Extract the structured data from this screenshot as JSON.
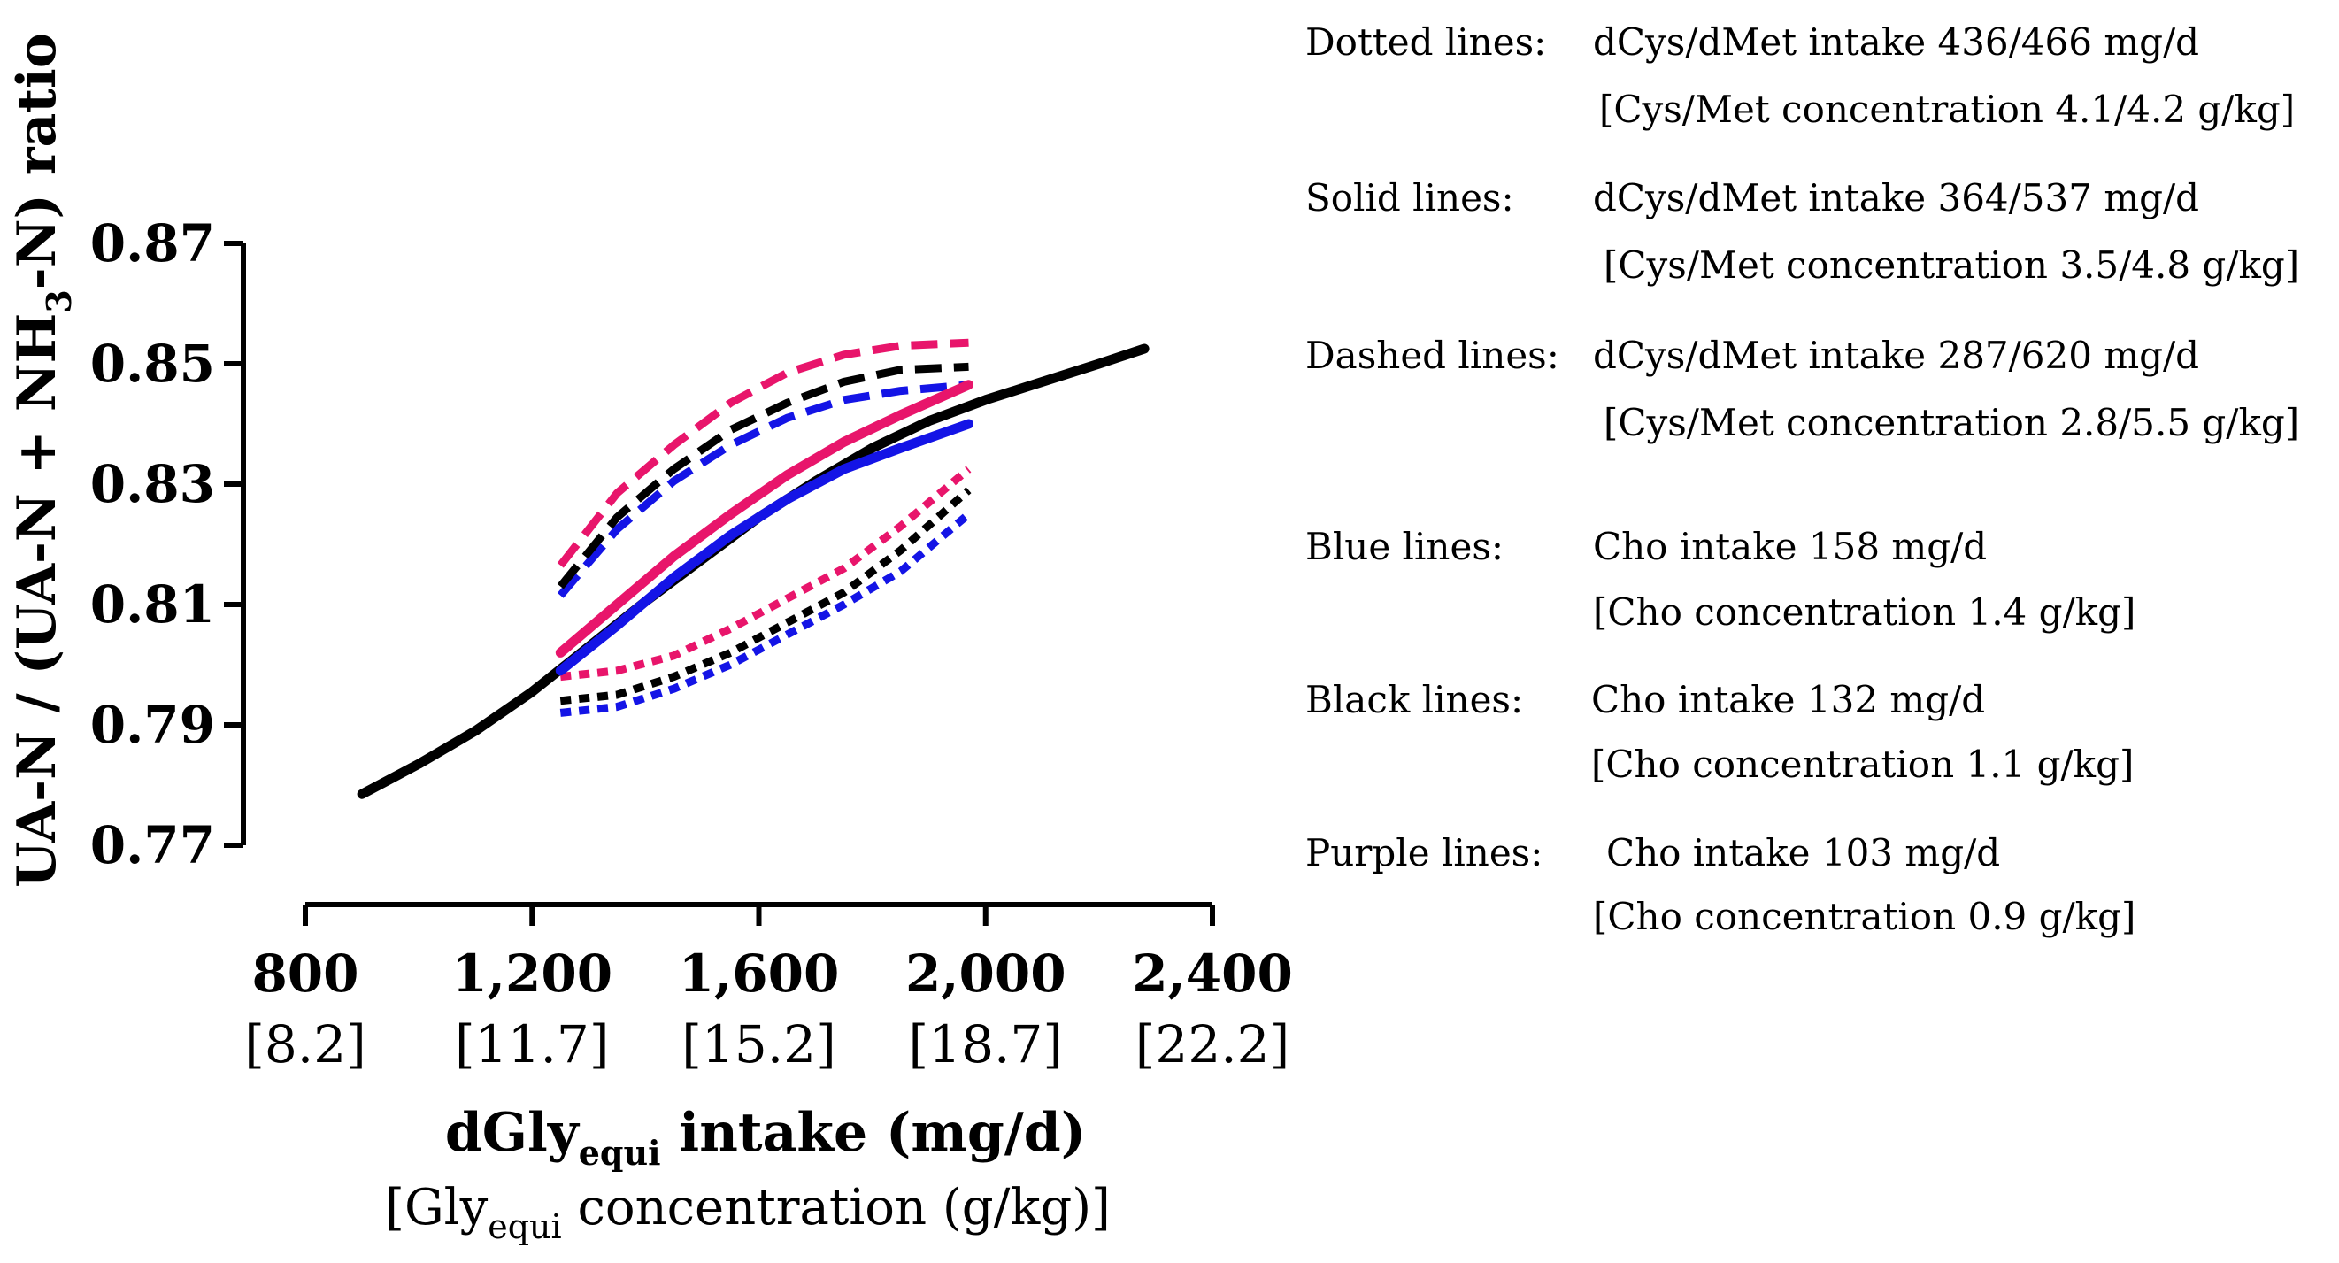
{
  "chart_data": {
    "type": "line",
    "ylabel_parts": [
      "UA-N / (UA-N + NH",
      "3",
      "-N) ratio"
    ],
    "xlabel_parts": [
      "dGly",
      "equi",
      " intake (mg/d)"
    ],
    "xlabel2_parts": [
      "[Gly",
      "equi",
      " concentration (g/kg)]"
    ],
    "xlim": [
      800,
      2400
    ],
    "ylim": [
      0.77,
      0.87
    ],
    "y_ticks": [
      "0.87",
      "0.85",
      "0.83",
      "0.81",
      "0.79",
      "0.77"
    ],
    "y_tick_values": [
      0.87,
      0.85,
      0.83,
      0.81,
      0.79,
      0.77
    ],
    "x_ticks": [
      "800",
      "1,200",
      "1,600",
      "2,000",
      "2,400"
    ],
    "x_tick_values": [
      800,
      1200,
      1600,
      2000,
      2400
    ],
    "x_ticks_secondary": [
      "[8.2]",
      "[11.7]",
      "[15.2]",
      "[18.7]",
      "[22.2]"
    ],
    "colors": {
      "blue": "#1414e6",
      "black": "#000000",
      "purple": "#e8156b"
    },
    "legend_text": [
      {
        "label": "Dotted lines:",
        "value": "dCys/dMet intake 436/466 mg/d",
        "value2": "[Cys/Met concentration 4.1/4.2 g/kg]"
      },
      {
        "label": "Solid lines:",
        "value": "dCys/dMet intake 364/537 mg/d",
        "value2": "[Cys/Met concentration 3.5/4.8 g/kg]"
      },
      {
        "label": "Dashed lines:",
        "value": "dCys/dMet intake 287/620 mg/d",
        "value2": "[Cys/Met concentration 2.8/5.5 g/kg]"
      },
      {
        "label": "Blue lines:",
        "value": "Cho intake 158 mg/d",
        "value2": "[Cho concentration 1.4 g/kg]"
      },
      {
        "label": "Black lines:",
        "value": "Cho intake 132 mg/d",
        "value2": "[Cho concentration 1.1 g/kg]"
      },
      {
        "label": "Purple lines:",
        "value": "Cho intake 103 mg/d",
        "value2": "[Cho concentration 0.9 g/kg]"
      }
    ],
    "series": [
      {
        "style": "solid",
        "color": "black",
        "x": [
          900,
          1000,
          1100,
          1200,
          1300,
          1400,
          1500,
          1600,
          1700,
          1800,
          1900,
          2000,
          2100,
          2200,
          2280
        ],
        "y": [
          0.7785,
          0.7835,
          0.789,
          0.7955,
          0.803,
          0.8105,
          0.8175,
          0.8245,
          0.8305,
          0.836,
          0.8405,
          0.844,
          0.847,
          0.85,
          0.8525
        ]
      },
      {
        "style": "solid",
        "color": "blue",
        "x": [
          1250,
          1350,
          1450,
          1550,
          1650,
          1750,
          1850,
          1970
        ],
        "y": [
          0.799,
          0.8065,
          0.8145,
          0.8215,
          0.8275,
          0.8325,
          0.836,
          0.84
        ]
      },
      {
        "style": "solid",
        "color": "purple",
        "x": [
          1250,
          1350,
          1450,
          1550,
          1650,
          1750,
          1850,
          1970
        ],
        "y": [
          0.802,
          0.81,
          0.818,
          0.825,
          0.8315,
          0.837,
          0.8415,
          0.8465
        ]
      },
      {
        "style": "dashed",
        "color": "blue",
        "x": [
          1250,
          1350,
          1450,
          1550,
          1650,
          1750,
          1850,
          1970
        ],
        "y": [
          0.8115,
          0.8225,
          0.8305,
          0.8365,
          0.841,
          0.844,
          0.8455,
          0.8465
        ]
      },
      {
        "style": "dashed",
        "color": "black",
        "x": [
          1250,
          1350,
          1450,
          1550,
          1650,
          1750,
          1850,
          1970
        ],
        "y": [
          0.813,
          0.8245,
          0.8325,
          0.839,
          0.8435,
          0.847,
          0.849,
          0.8495
        ]
      },
      {
        "style": "dashed",
        "color": "purple",
        "x": [
          1250,
          1350,
          1450,
          1550,
          1650,
          1750,
          1850,
          1970
        ],
        "y": [
          0.8165,
          0.8285,
          0.8365,
          0.8435,
          0.8485,
          0.8515,
          0.853,
          0.8535
        ]
      },
      {
        "style": "dotted",
        "color": "blue",
        "x": [
          1250,
          1350,
          1450,
          1550,
          1650,
          1750,
          1850,
          1970
        ],
        "y": [
          0.792,
          0.793,
          0.796,
          0.8,
          0.805,
          0.81,
          0.8155,
          0.825
        ]
      },
      {
        "style": "dotted",
        "color": "black",
        "x": [
          1250,
          1350,
          1450,
          1550,
          1650,
          1750,
          1850,
          1970
        ],
        "y": [
          0.794,
          0.795,
          0.798,
          0.802,
          0.807,
          0.812,
          0.819,
          0.829
        ]
      },
      {
        "style": "dotted",
        "color": "purple",
        "x": [
          1250,
          1350,
          1450,
          1550,
          1650,
          1750,
          1850,
          1970
        ],
        "y": [
          0.798,
          0.799,
          0.8015,
          0.806,
          0.811,
          0.816,
          0.823,
          0.8325
        ]
      }
    ]
  }
}
